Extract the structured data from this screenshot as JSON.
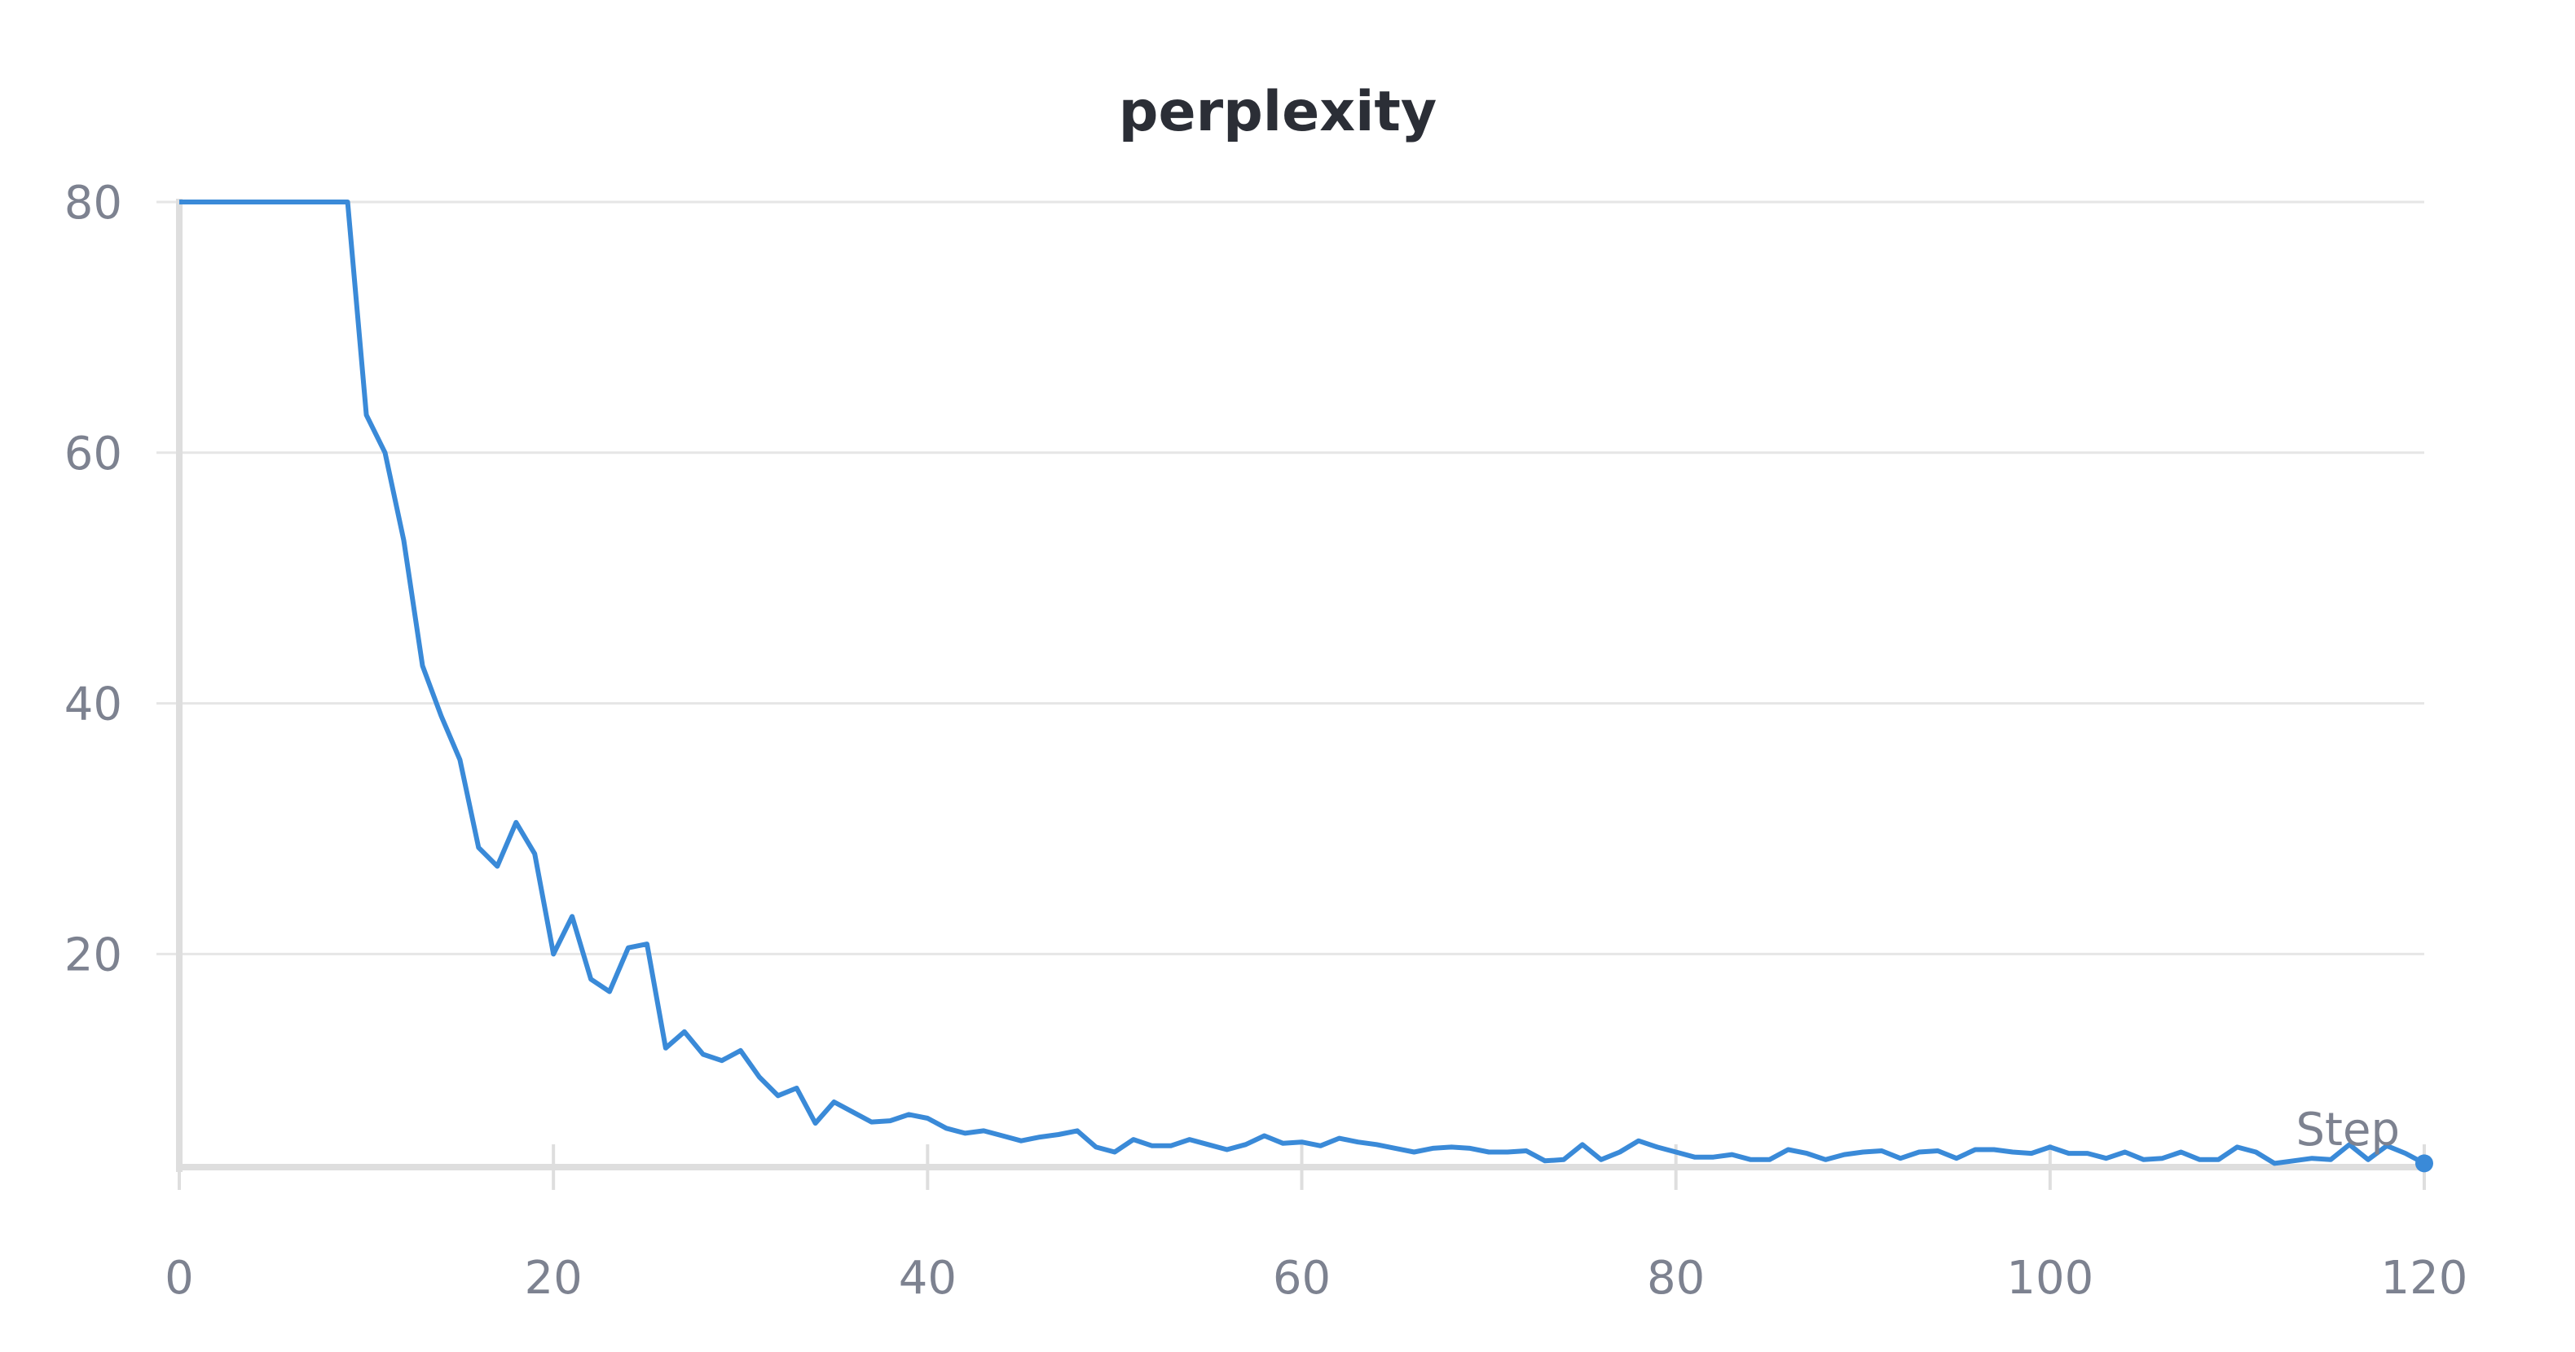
{
  "chart_data": {
    "type": "line",
    "title": "perplexity",
    "xlabel": "Step",
    "ylabel": "",
    "xlim": [
      0,
      120
    ],
    "ylim": [
      3,
      80
    ],
    "x_ticks": [
      0,
      20,
      40,
      60,
      80,
      100,
      120
    ],
    "y_ticks": [
      20,
      40,
      60,
      80
    ],
    "grid": true,
    "colors": {
      "line": "#3a8ad8",
      "grid": "#e6e6e6",
      "axis": "#dedede",
      "text": "#7d8290",
      "title": "#2b2e36"
    },
    "series": [
      {
        "x": [
          0,
          1,
          2,
          3,
          4,
          5,
          6,
          7,
          8,
          9,
          10,
          11,
          12,
          13,
          14,
          15,
          16,
          17,
          18,
          19,
          20,
          21,
          22,
          23,
          24,
          25,
          26,
          27,
          28,
          29,
          30,
          31,
          32,
          33,
          34,
          35,
          36,
          37,
          38,
          39,
          40,
          41,
          42,
          43,
          44,
          45,
          46,
          47,
          48,
          49,
          50,
          51,
          52,
          53,
          54,
          55,
          56,
          57,
          58,
          59,
          60,
          61,
          62,
          63,
          64,
          65,
          66,
          67,
          68,
          69,
          70,
          71,
          72,
          73,
          74,
          75,
          76,
          77,
          78,
          79,
          80,
          81,
          82,
          83,
          84,
          85,
          86,
          87,
          88,
          89,
          90,
          91,
          92,
          93,
          94,
          95,
          96,
          97,
          98,
          99,
          100,
          101,
          102,
          103,
          104,
          105,
          106,
          107,
          108,
          109,
          110,
          111,
          112,
          113,
          114,
          115,
          116,
          117,
          118,
          119,
          120
        ],
        "values": [
          80,
          80,
          80,
          80,
          80,
          80,
          80,
          80,
          80,
          80,
          63,
          60,
          53,
          43,
          39,
          35.5,
          28.5,
          27,
          30.5,
          28,
          20,
          23,
          18,
          17,
          20.5,
          20.8,
          12.5,
          13.8,
          12,
          11.5,
          12.3,
          10.2,
          8.7,
          9.3,
          6.5,
          8.2,
          7.4,
          6.6,
          6.7,
          7.2,
          6.9,
          6.1,
          5.7,
          5.9,
          5.5,
          5.1,
          5.4,
          5.6,
          5.9,
          4.6,
          4.2,
          5.2,
          4.7,
          4.7,
          5.2,
          4.8,
          4.4,
          4.8,
          5.5,
          4.9,
          5.0,
          4.7,
          5.3,
          5.0,
          4.8,
          4.5,
          4.2,
          4.5,
          4.6,
          4.5,
          4.2,
          4.2,
          4.3,
          3.5,
          3.6,
          4.8,
          3.6,
          4.2,
          5.1,
          4.6,
          4.2,
          3.8,
          3.8,
          4.0,
          3.6,
          3.6,
          4.4,
          4.1,
          3.6,
          4.0,
          4.2,
          4.3,
          3.7,
          4.2,
          4.3,
          3.7,
          4.4,
          4.4,
          4.2,
          4.1,
          4.6,
          4.1,
          4.1,
          3.7,
          4.2,
          3.6,
          3.7,
          4.2,
          3.6,
          3.6,
          4.6,
          4.2,
          3.3,
          3.5,
          3.7,
          3.6,
          4.8,
          3.6,
          4.7,
          4.1,
          3.3
        ]
      }
    ]
  }
}
